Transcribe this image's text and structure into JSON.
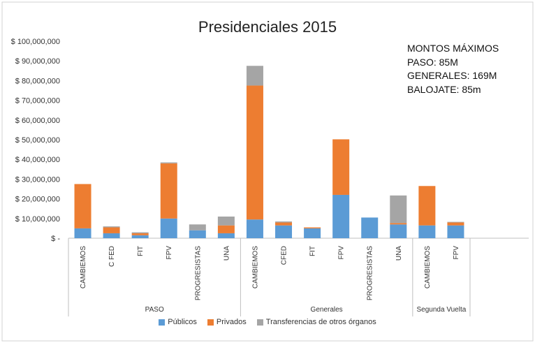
{
  "chart_data": {
    "type": "bar",
    "stacked": true,
    "title": "Presidenciales 2015",
    "ylim": [
      0,
      100000000
    ],
    "y_ticks": [
      "$ -",
      "$ 10,000,000",
      "$ 20,000,000",
      "$ 30,000,000",
      "$ 40,000,000",
      "$ 50,000,000",
      "$ 60,000,000",
      "$ 70,000,000",
      "$ 80,000,000",
      "$ 90,000,000",
      "$ 100,000,000"
    ],
    "groups": [
      {
        "name": "PASO",
        "categories": [
          "CAMBIEMOS",
          "C FED",
          "FIT",
          "FPV",
          "PROGRESISTAS",
          "UNA"
        ]
      },
      {
        "name": "Generales",
        "categories": [
          "CAMBIEMOS",
          "CFED",
          "FIT",
          "FPV",
          "PROGRESISTAS",
          "UNA"
        ]
      },
      {
        "name": "Segunda Vuelta",
        "categories": [
          "CAMBIEMOS",
          "FPV"
        ]
      }
    ],
    "series": [
      {
        "name": "Públicos",
        "color": "#5b9bd5",
        "values": [
          5000000,
          2500000,
          1500000,
          10000000,
          4000000,
          2500000,
          9500000,
          6500000,
          5000000,
          22000000,
          10500000,
          7000000,
          6500000,
          6500000
        ]
      },
      {
        "name": "Privados",
        "color": "#ed7d31",
        "values": [
          22500000,
          3000000,
          1000000,
          28000000,
          0,
          4000000,
          68000000,
          1500000,
          500000,
          28200000,
          0,
          700000,
          20000000,
          1500000
        ]
      },
      {
        "name": "Transferencias de otros órganos",
        "color": "#a5a5a5",
        "values": [
          0,
          500000,
          500000,
          500000,
          3000000,
          4500000,
          10000000,
          500000,
          0,
          0,
          0,
          14000000,
          0,
          300000
        ]
      }
    ],
    "annotations": [
      "MONTOS MÁXIMOS",
      "PASO: 85M",
      "GENERALES: 169M",
      "BALOJATE: 85m"
    ]
  }
}
